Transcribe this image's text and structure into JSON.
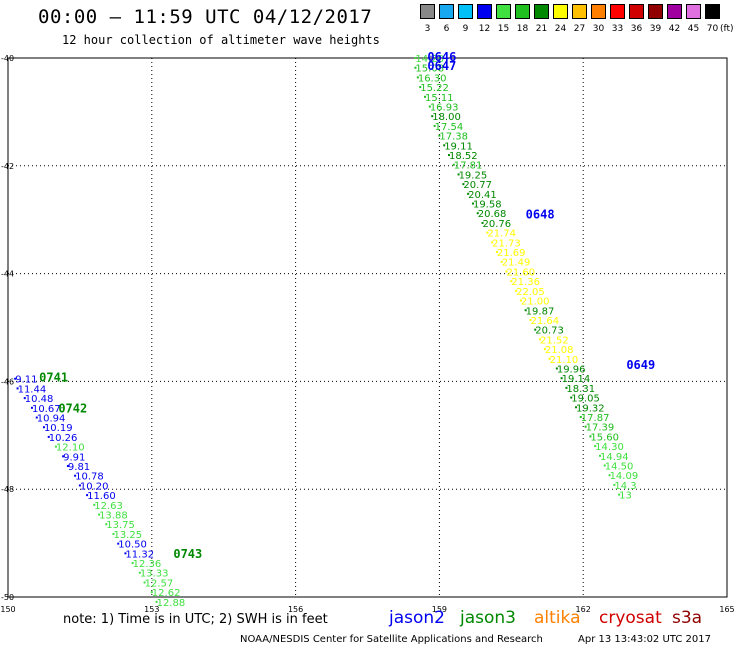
{
  "header": {
    "title": "00:00 – 11:59 UTC 04/12/2017",
    "subtitle": "12 hour collection of altimeter wave heights"
  },
  "color_scale": {
    "unit": "(ft)",
    "bins": [
      {
        "label": "3",
        "color": "#888888"
      },
      {
        "label": "6",
        "color": "#18a8f0"
      },
      {
        "label": "9",
        "color": "#00c0f8"
      },
      {
        "label": "12",
        "color": "#0000f0"
      },
      {
        "label": "15",
        "color": "#40e040"
      },
      {
        "label": "18",
        "color": "#20c020"
      },
      {
        "label": "21",
        "color": "#008800"
      },
      {
        "label": "24",
        "color": "#ffff00"
      },
      {
        "label": "27",
        "color": "#ffc000"
      },
      {
        "label": "30",
        "color": "#ff8000"
      },
      {
        "label": "33",
        "color": "#ff0000"
      },
      {
        "label": "36",
        "color": "#d00000"
      },
      {
        "label": "39",
        "color": "#900000"
      },
      {
        "label": "42",
        "color": "#a000a0"
      },
      {
        "label": "45",
        "color": "#e070e0"
      },
      {
        "label": "70",
        "color": "#000000"
      }
    ]
  },
  "chart_data": {
    "type": "scatter",
    "xlim": [
      150,
      165
    ],
    "ylim": [
      -50,
      -40
    ],
    "x_ticks": [
      "150",
      "153",
      "156",
      "159",
      "162",
      "165"
    ],
    "y_ticks": [
      "-40",
      "-42",
      "-44",
      "-46",
      "-48",
      "-50"
    ],
    "grid": true,
    "tracks": [
      {
        "points": [
          {
            "x": 158.5,
            "y": -40.0,
            "label": "14.20"
          },
          {
            "x": 158.5,
            "y": -40.18,
            "label": "15.08"
          },
          {
            "x": 158.55,
            "y": -40.36,
            "label": "16.30"
          },
          {
            "x": 158.6,
            "y": -40.54,
            "label": "15.22"
          },
          {
            "x": 158.7,
            "y": -40.72,
            "label": "15.11"
          },
          {
            "x": 158.8,
            "y": -40.9,
            "label": "16.93"
          },
          {
            "x": 158.85,
            "y": -41.08,
            "label": "18.00"
          },
          {
            "x": 158.9,
            "y": -41.26,
            "label": "17.54"
          },
          {
            "x": 159.0,
            "y": -41.44,
            "label": "17.38"
          },
          {
            "x": 159.1,
            "y": -41.62,
            "label": "19.11"
          },
          {
            "x": 159.2,
            "y": -41.8,
            "label": "18.52"
          },
          {
            "x": 159.3,
            "y": -41.98,
            "label": "17.81"
          },
          {
            "x": 159.4,
            "y": -42.16,
            "label": "19.25"
          },
          {
            "x": 159.5,
            "y": -42.34,
            "label": "20.77"
          },
          {
            "x": 159.6,
            "y": -42.52,
            "label": "20.41"
          },
          {
            "x": 159.7,
            "y": -42.7,
            "label": "19.58"
          },
          {
            "x": 159.8,
            "y": -42.88,
            "label": "20.68"
          },
          {
            "x": 159.9,
            "y": -43.06,
            "label": "20.76"
          },
          {
            "x": 160.0,
            "y": -43.24,
            "label": "21.74"
          },
          {
            "x": 160.1,
            "y": -43.42,
            "label": "21.73"
          },
          {
            "x": 160.2,
            "y": -43.6,
            "label": "21.69"
          },
          {
            "x": 160.3,
            "y": -43.78,
            "label": "21.49"
          },
          {
            "x": 160.4,
            "y": -43.96,
            "label": "21.60"
          },
          {
            "x": 160.5,
            "y": -44.14,
            "label": "21.36"
          },
          {
            "x": 160.6,
            "y": -44.32,
            "label": "22.05"
          },
          {
            "x": 160.7,
            "y": -44.5,
            "label": "21.00"
          },
          {
            "x": 160.8,
            "y": -44.68,
            "label": "19.87"
          },
          {
            "x": 160.9,
            "y": -44.86,
            "label": "21.64"
          },
          {
            "x": 161.0,
            "y": -45.04,
            "label": "20.73"
          },
          {
            "x": 161.1,
            "y": -45.22,
            "label": "21.52"
          },
          {
            "x": 161.2,
            "y": -45.4,
            "label": "21.08"
          },
          {
            "x": 161.3,
            "y": -45.58,
            "label": "21.10"
          },
          {
            "x": 161.45,
            "y": -45.76,
            "label": "19.96"
          },
          {
            "x": 161.55,
            "y": -45.94,
            "label": "19.14"
          },
          {
            "x": 161.65,
            "y": -46.12,
            "label": "18.31"
          },
          {
            "x": 161.75,
            "y": -46.3,
            "label": "19.05"
          },
          {
            "x": 161.85,
            "y": -46.48,
            "label": "19.32"
          },
          {
            "x": 161.95,
            "y": -46.66,
            "label": "17.87"
          },
          {
            "x": 162.05,
            "y": -46.84,
            "label": "17.39"
          },
          {
            "x": 162.15,
            "y": -47.02,
            "label": "15.60"
          },
          {
            "x": 162.25,
            "y": -47.2,
            "label": "14.30"
          },
          {
            "x": 162.35,
            "y": -47.38,
            "label": "14.94"
          },
          {
            "x": 162.45,
            "y": -47.56,
            "label": "14.50"
          },
          {
            "x": 162.55,
            "y": -47.74,
            "label": "14.09"
          },
          {
            "x": 162.65,
            "y": -47.92,
            "label": "14.3"
          },
          {
            "x": 162.75,
            "y": -48.1,
            "label": "13"
          }
        ],
        "times": [
          {
            "x": 158.75,
            "y": -39.98,
            "label": "0646",
            "color": "#0000f0"
          },
          {
            "x": 158.75,
            "y": -40.15,
            "label": "0647",
            "color": "#0000f0"
          },
          {
            "x": 160.8,
            "y": -42.9,
            "label": "0648",
            "color": "#0000f0"
          },
          {
            "x": 162.9,
            "y": -45.7,
            "label": "0649",
            "color": "#0000f0"
          }
        ]
      },
      {
        "points": [
          {
            "x": 150.15,
            "y": -45.95,
            "label": "9.11"
          },
          {
            "x": 150.2,
            "y": -46.13,
            "label": "11.44"
          },
          {
            "x": 150.35,
            "y": -46.31,
            "label": "10.48"
          },
          {
            "x": 150.5,
            "y": -46.49,
            "label": "10.67"
          },
          {
            "x": 150.6,
            "y": -46.67,
            "label": "10.94"
          },
          {
            "x": 150.75,
            "y": -46.85,
            "label": "10.19"
          },
          {
            "x": 150.85,
            "y": -47.03,
            "label": "10.26"
          },
          {
            "x": 151.0,
            "y": -47.21,
            "label": "12.10"
          },
          {
            "x": 151.15,
            "y": -47.39,
            "label": "9.91"
          },
          {
            "x": 151.25,
            "y": -47.57,
            "label": "9.81"
          },
          {
            "x": 151.4,
            "y": -47.75,
            "label": "10.78"
          },
          {
            "x": 151.5,
            "y": -47.93,
            "label": "10.20"
          },
          {
            "x": 151.65,
            "y": -48.11,
            "label": "11.60"
          },
          {
            "x": 151.8,
            "y": -48.29,
            "label": "12.63"
          },
          {
            "x": 151.9,
            "y": -48.47,
            "label": "13.88"
          },
          {
            "x": 152.05,
            "y": -48.65,
            "label": "13.75"
          },
          {
            "x": 152.2,
            "y": -48.83,
            "label": "13.25"
          },
          {
            "x": 152.3,
            "y": -49.01,
            "label": "10.50"
          },
          {
            "x": 152.45,
            "y": -49.19,
            "label": "11.32"
          },
          {
            "x": 152.6,
            "y": -49.37,
            "label": "12.36"
          },
          {
            "x": 152.75,
            "y": -49.55,
            "label": "13.33"
          },
          {
            "x": 152.85,
            "y": -49.73,
            "label": "12.57"
          },
          {
            "x": 153.0,
            "y": -49.91,
            "label": "12.62"
          },
          {
            "x": 153.1,
            "y": -50.09,
            "label": "12.88"
          }
        ],
        "times": [
          {
            "x": 150.65,
            "y": -45.93,
            "label": "0741",
            "color": "#008800"
          },
          {
            "x": 151.05,
            "y": -46.5,
            "label": "0742",
            "color": "#008800"
          },
          {
            "x": 153.45,
            "y": -49.2,
            "label": "0743",
            "color": "#008800"
          }
        ]
      }
    ]
  },
  "footer": {
    "note": "note: 1) Time is in UTC; 2) SWH is in feet",
    "legend": [
      {
        "label": "jason2",
        "color": "#0000f0"
      },
      {
        "label": "jason3",
        "color": "#008800"
      },
      {
        "label": "altika",
        "color": "#ff8000"
      },
      {
        "label": "cryosat",
        "color": "#d00000"
      },
      {
        "label": "s3a",
        "color": "#900000"
      }
    ],
    "credit": "NOAA/NESDIS Center for Satellite Applications and Research",
    "timestamp": "Apr 13 13:43:02 UTC 2017"
  }
}
